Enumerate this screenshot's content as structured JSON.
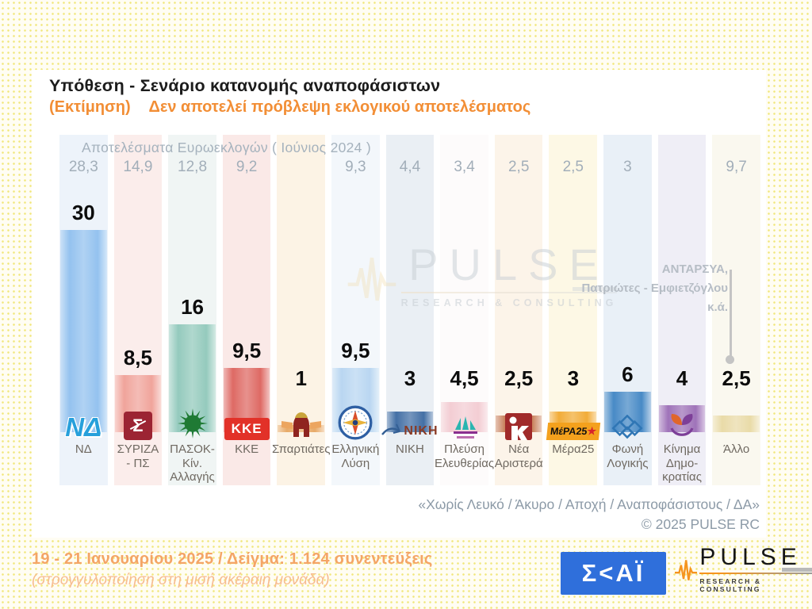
{
  "title": "Υπόθεση - Σενάριο κατανομής αναποφάσιστων",
  "subtitle": {
    "left": "(Εκτίμηση)",
    "right": "Δεν αποτελεί πρόβλεψη εκλογικού αποτελέσματος"
  },
  "euro_header": "Αποτελέσματα Ευρωεκλογών  ( Ιούνιος 2024 )",
  "watermark": {
    "name": "PULSE",
    "tagline": "RESEARCH & CONSULTING"
  },
  "annotation": {
    "line1": "ΑΝΤΑΡΣΥΑ,",
    "line2": "Πατριώτες - Εμφιετζόγλου",
    "line3": "κ.ά."
  },
  "footer": {
    "note": "«Χωρίς Λευκό / Άκυρο / Αποχή / Αναποφάσιστους / ΔΑ»",
    "copyright": "©  2025  PULSE RC"
  },
  "bottom": {
    "date_sample": "19 - 21 Ιανουαρίου 2025  /  Δείγμα:  1.124 συνεντεύξεις",
    "rounding_note": "(στρογγυλοποίηση στη μισή ακέραιη μονάδα)",
    "skai_text": "Σ<ΑΪ",
    "pulse": {
      "name": "PULSE",
      "tagline": "RESEARCH & CONSULTING"
    }
  },
  "logo_texts": {
    "nd": "ΝΔ",
    "syriza": "Σ",
    "kke": "ΚΚΕ",
    "niki": "ΝΙΚΗ",
    "mera25": "ΜέΡΑ25"
  },
  "chart_data": {
    "type": "bar",
    "title": "Υπόθεση - Σενάριο κατανομής αναποφάσιστων (Εκτίμηση)",
    "subtitle": "Δεν αποτελεί πρόβλεψη εκλογικού αποτελέσματος",
    "xlabel": "",
    "ylabel": "",
    "ylim": [
      0,
      32
    ],
    "grid": false,
    "legend_position": "none",
    "categories": [
      "ΝΔ",
      "ΣΥΡΙΖΑ - ΠΣ",
      "ΠΑΣΟΚ-Κίν. Αλλαγής",
      "ΚΚΕ",
      "Σπαρτιάτες",
      "Ελληνική Λύση",
      "ΝΙΚΗ",
      "Πλεύση Ελευθερίας",
      "Νέα Αριστερά",
      "Μέρα25",
      "Φωνή Λογικής",
      "Κίνημα Δημοκρατίας",
      "Άλλο"
    ],
    "series": [
      {
        "name": "Εκτίμηση (19 - 21 Ιανουαρίου 2025)",
        "values": [
          30,
          8.5,
          16,
          9.5,
          1,
          9.5,
          3,
          4.5,
          2.5,
          3,
          6,
          4,
          2.5
        ]
      },
      {
        "name": "Αποτελέσματα Ευρωεκλογών (Ιούνιος 2024)",
        "values": [
          28.3,
          14.9,
          12.8,
          9.2,
          null,
          9.3,
          4.4,
          3.4,
          2.5,
          2.5,
          3,
          null,
          9.7
        ]
      }
    ],
    "columns": [
      {
        "slug": "nd",
        "label": "ΝΔ",
        "value_display": "30",
        "euro_display": "28,3",
        "bar_color": "#8ebfee",
        "strip_color": "#edf3fa",
        "logo": "nd-logo"
      },
      {
        "slug": "syriza",
        "label": "ΣΥΡΙΖΑ\n- ΠΣ",
        "value_display": "8,5",
        "euro_display": "14,9",
        "bar_color": "#ef9f96",
        "strip_color": "#fbedeb",
        "logo": "syriza-logo"
      },
      {
        "slug": "pasok",
        "label": "ΠΑΣΟΚ-Κίν.\nΑλλαγής",
        "value_display": "16",
        "euro_display": "12,8",
        "bar_color": "#8ec7b9",
        "strip_color": "#f0f5f4",
        "logo": "pasok-logo"
      },
      {
        "slug": "kke",
        "label": "ΚΚΕ",
        "value_display": "9,5",
        "euro_display": "9,2",
        "bar_color": "#dc625c",
        "strip_color": "#fae9e7",
        "logo": "kke-logo"
      },
      {
        "slug": "spartiates",
        "label": "Σπαρτιάτες",
        "value_display": "1",
        "euro_display": "",
        "bar_color": "#e7a660",
        "strip_color": "#fcf3e5",
        "logo": "spartiates-logo"
      },
      {
        "slug": "elliniki-lysi",
        "label": "Ελληνική\nΛύση",
        "value_display": "9,5",
        "euro_display": "9,3",
        "bar_color": "#b5d4f0",
        "strip_color": "#f3f7fb",
        "logo": "elliniki-lysi-logo"
      },
      {
        "slug": "niki",
        "label": "ΝΙΚΗ",
        "value_display": "3",
        "euro_display": "4,4",
        "bar_color": "#3a68a0",
        "strip_color": "#eaeff4",
        "logo": "niki-logo"
      },
      {
        "slug": "plefsi-eleftherias",
        "label": "Πλεύση\nΕλευθερίας",
        "value_display": "4,5",
        "euro_display": "3,4",
        "bar_color": "#f2cad1",
        "strip_color": "#fdfbfb",
        "logo": "plefsi-eleftherias-logo"
      },
      {
        "slug": "nea-aristera",
        "label": "Νέα\nΑριστερά",
        "value_display": "2,5",
        "euro_display": "2,5",
        "bar_color": "#c67a53",
        "strip_color": "#fcf4e9",
        "logo": "nea-aristera-logo"
      },
      {
        "slug": "mera25",
        "label": "Μέρα25",
        "value_display": "3",
        "euro_display": "2,5",
        "bar_color": "#f1a82d",
        "strip_color": "#fdf8e5",
        "logo": "mera25-logo"
      },
      {
        "slug": "foni-logikis",
        "label": "Φωνή\nΛογικής",
        "value_display": "6",
        "euro_display": "3",
        "bar_color": "#3e84c3",
        "strip_color": "#e9f0f7",
        "logo": "foni-logikis-logo"
      },
      {
        "slug": "kinima-dimokratias",
        "label": "Κίνημα\nΔημο-\nκρατίας",
        "value_display": "4",
        "euro_display": "",
        "bar_color": "#9a6cb5",
        "strip_color": "#efeef6",
        "logo": "kinima-dimokratias-logo"
      },
      {
        "slug": "allo",
        "label": "Άλλο",
        "value_display": "2,5",
        "euro_display": "9,7",
        "bar_color": "#e8d9a3",
        "strip_color": "#faf8ef",
        "logo": null
      }
    ]
  }
}
